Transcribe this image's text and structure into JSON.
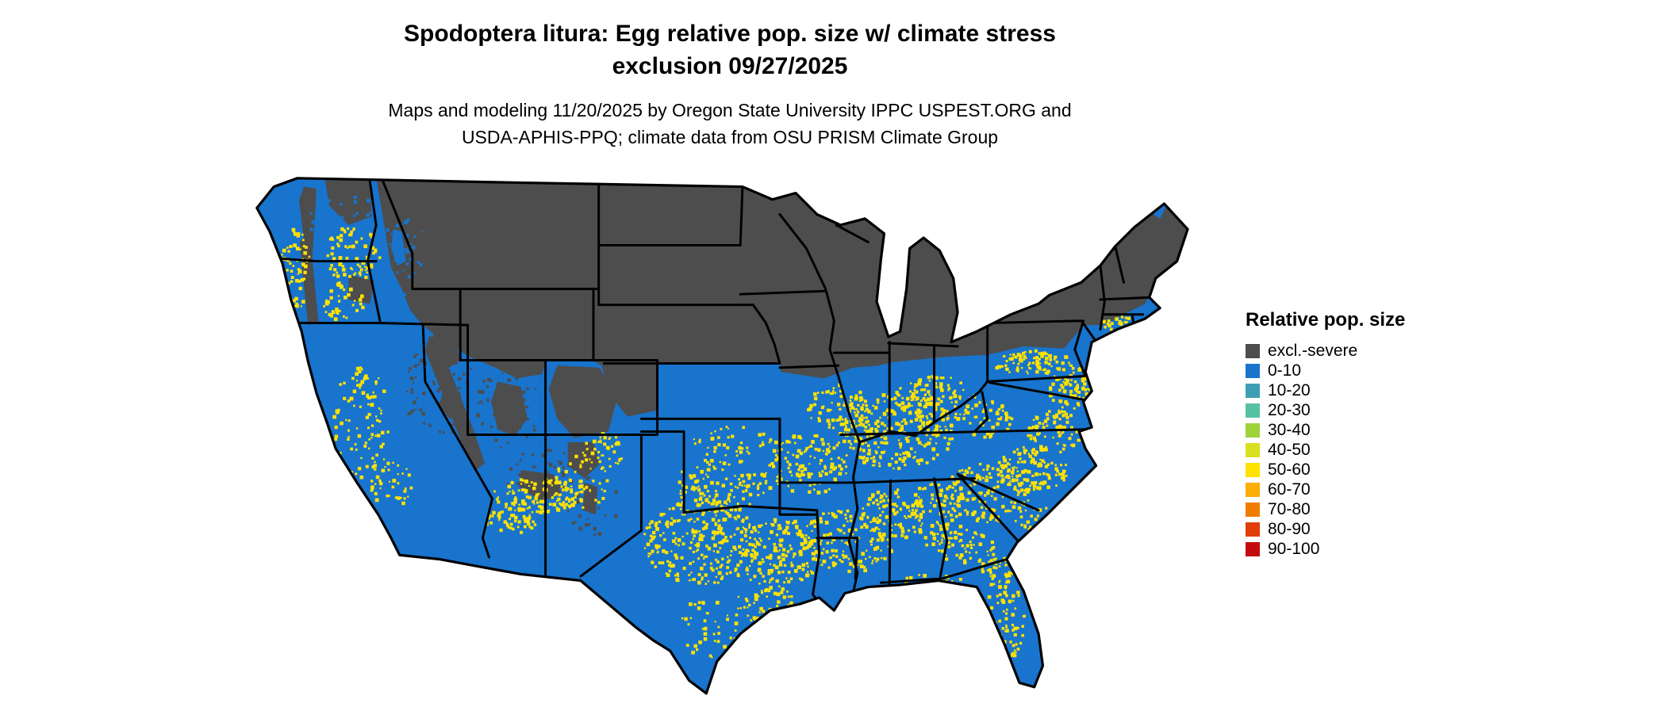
{
  "header": {
    "title_line1": "Spodoptera litura: Egg relative pop. size w/ climate stress",
    "title_line2": "exclusion 09/27/2025",
    "subtitle_line1": "Maps and modeling 11/20/2025 by Oregon State University IPPC USPEST.ORG and",
    "subtitle_line2": "USDA-APHIS-PPQ; climate data from OSU PRISM Climate Group"
  },
  "legend": {
    "title": "Relative pop. size",
    "items": [
      {
        "label": "excl.-severe",
        "color": "#4D4D4D"
      },
      {
        "label": "0-10",
        "color": "#1874CD"
      },
      {
        "label": "10-20",
        "color": "#3E9FB4"
      },
      {
        "label": "20-30",
        "color": "#57C1A4"
      },
      {
        "label": "30-40",
        "color": "#9FD33C"
      },
      {
        "label": "40-50",
        "color": "#D9E021"
      },
      {
        "label": "50-60",
        "color": "#FFE200"
      },
      {
        "label": "60-70",
        "color": "#FBAE08"
      },
      {
        "label": "70-80",
        "color": "#F17D00"
      },
      {
        "label": "80-90",
        "color": "#E03E0B"
      },
      {
        "label": "90-100",
        "color": "#C30D0D"
      }
    ]
  }
}
